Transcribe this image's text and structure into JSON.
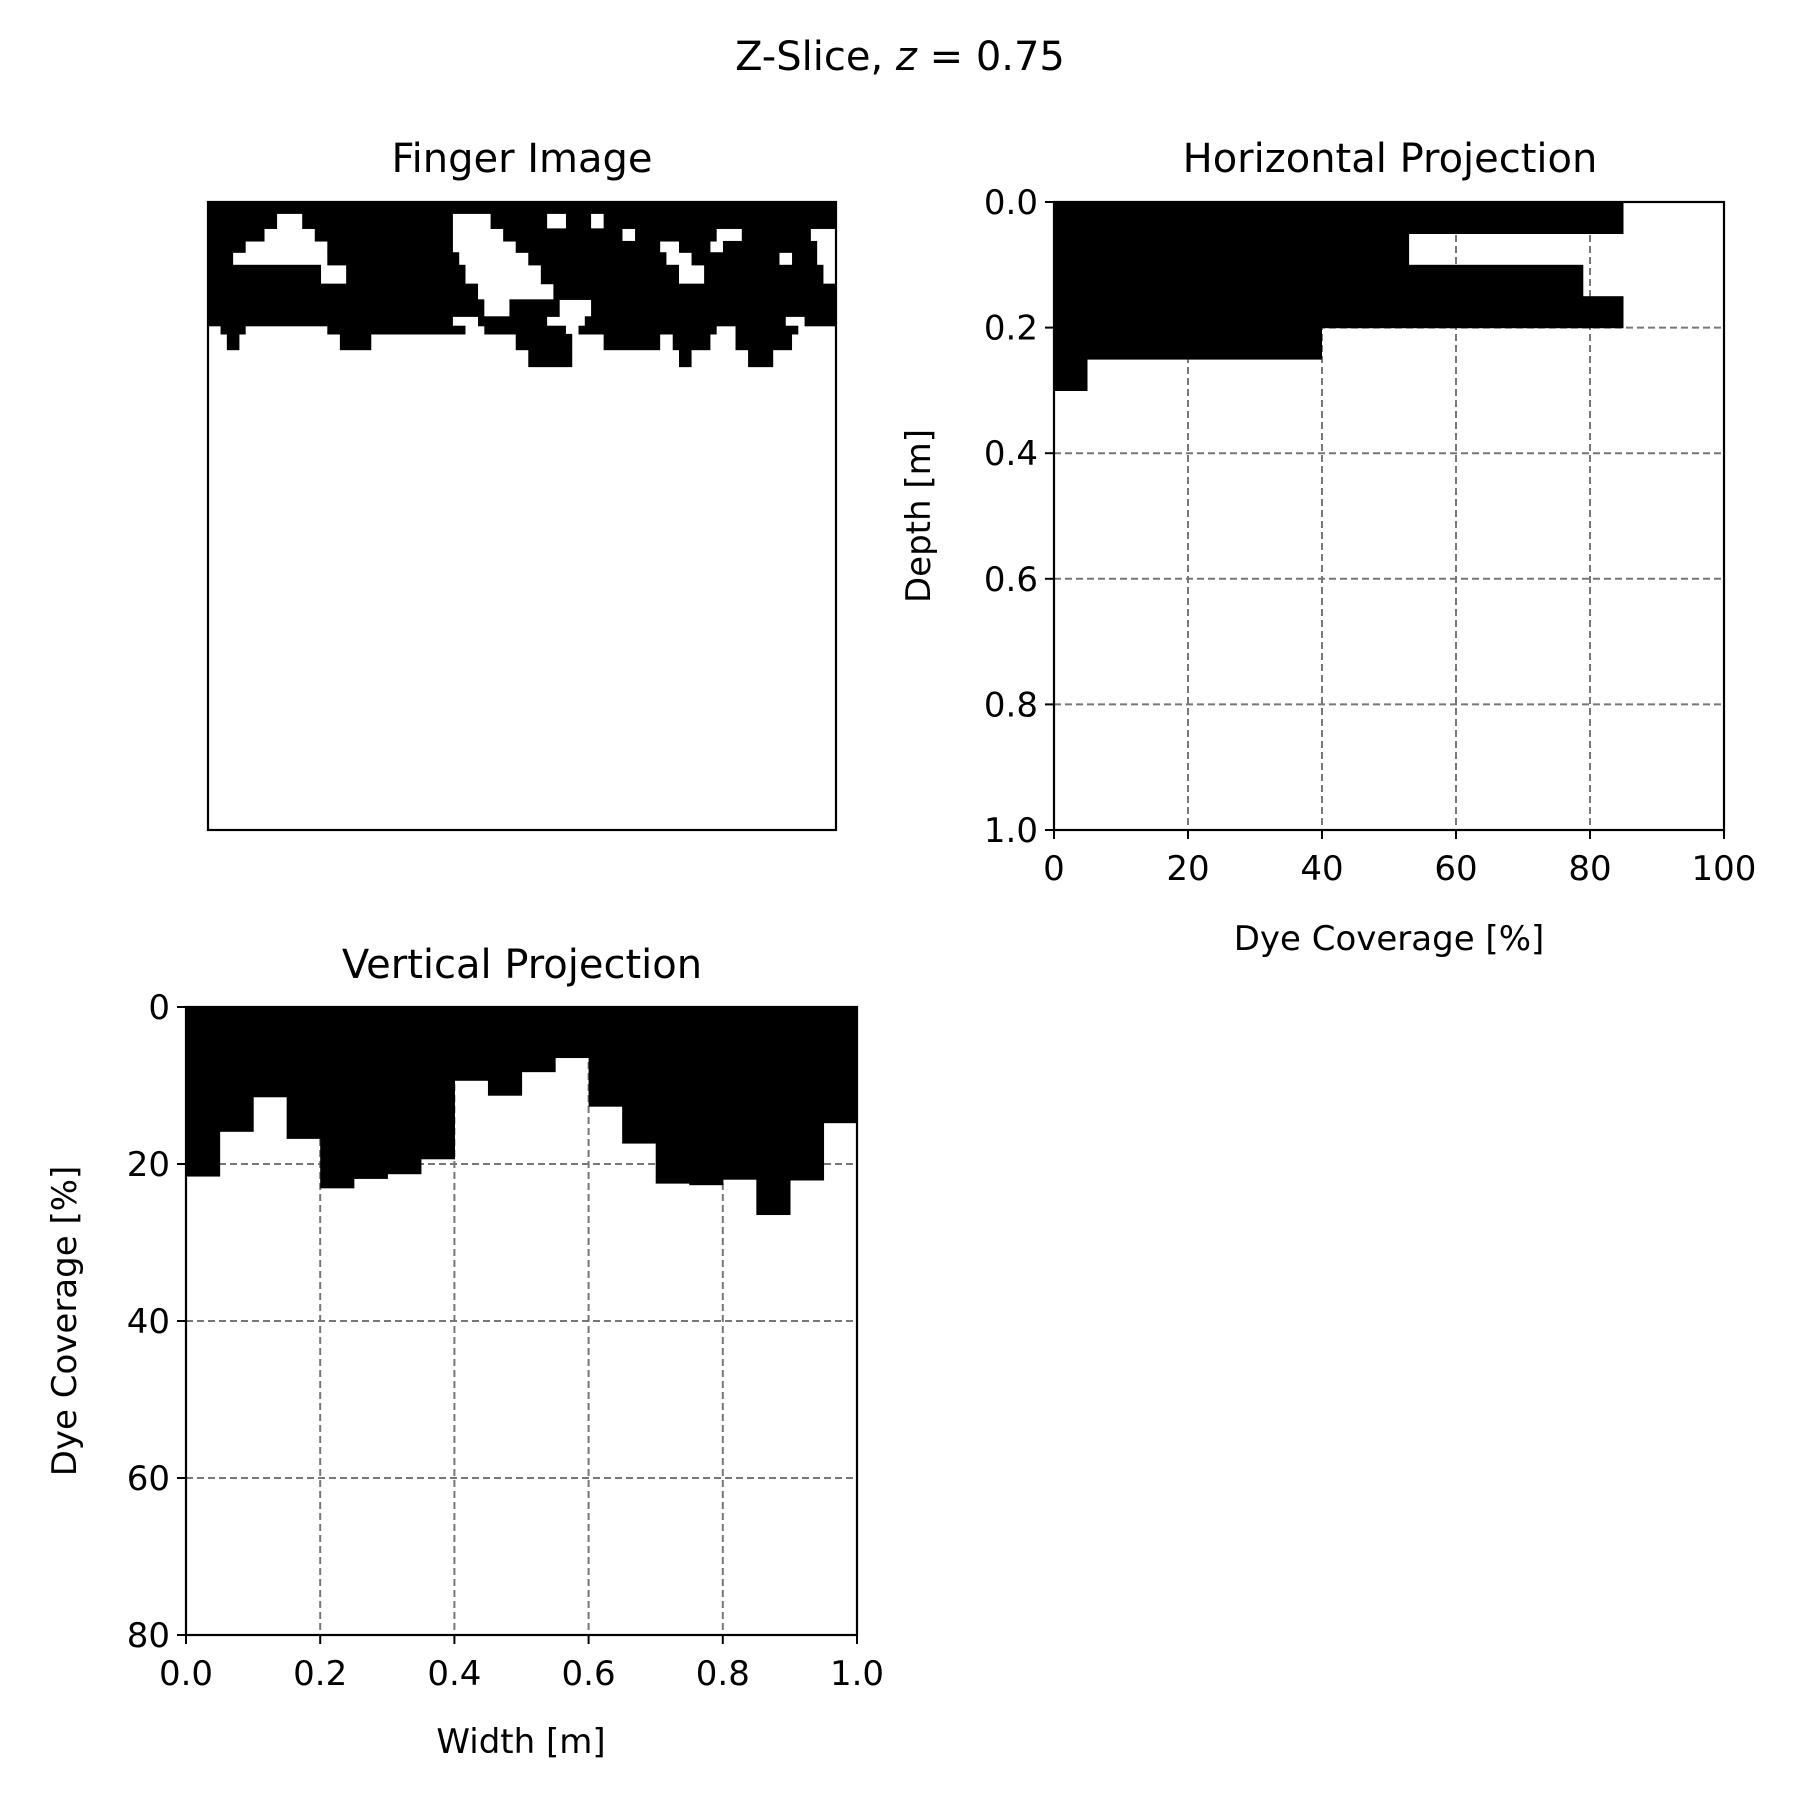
{
  "figure": {
    "suptitle_prefix": "Z-Slice, ",
    "suptitle_var": "z",
    "suptitle_rest": " = 0.75"
  },
  "chart_data": [
    {
      "type": "heatmap",
      "title": "Finger Image",
      "colors": {
        "dye": "#000000",
        "background": "#ffffff"
      },
      "grid": false,
      "axes_ticks": "none",
      "extent": {
        "width_m": 1.0,
        "depth_m": 1.0
      },
      "depth_rows_m": [
        [
          0.0,
          0.018,
          [
            [
              0.0,
              1.0
            ]
          ]
        ],
        [
          0.018,
          0.042,
          [
            [
              0.0,
              0.11
            ],
            [
              0.15,
              0.39
            ],
            [
              0.45,
              0.54
            ],
            [
              0.57,
              0.61
            ],
            [
              0.63,
              1.0
            ]
          ]
        ],
        [
          0.042,
          0.062,
          [
            [
              0.0,
              0.09
            ],
            [
              0.17,
              0.39
            ],
            [
              0.47,
              0.66
            ],
            [
              0.68,
              0.81
            ],
            [
              0.85,
              0.96
            ]
          ]
        ],
        [
          0.062,
          0.08,
          [
            [
              0.0,
              0.06
            ],
            [
              0.19,
              0.39
            ],
            [
              0.49,
              0.72
            ],
            [
              0.75,
              0.8
            ],
            [
              0.82,
              0.97
            ]
          ]
        ],
        [
          0.08,
          0.1,
          [
            [
              0.0,
              0.04
            ],
            [
              0.19,
              0.4
            ],
            [
              0.51,
              0.73
            ],
            [
              0.77,
              0.91
            ],
            [
              0.93,
              0.97
            ]
          ]
        ],
        [
          0.1,
          0.13,
          [
            [
              0.0,
              0.18
            ],
            [
              0.22,
              0.41
            ],
            [
              0.53,
              0.75
            ],
            [
              0.79,
              0.98
            ]
          ]
        ],
        [
          0.13,
          0.155,
          [
            [
              0.0,
              0.43
            ],
            [
              0.55,
              1.0
            ]
          ]
        ],
        [
          0.155,
          0.182,
          [
            [
              0.0,
              0.44
            ],
            [
              0.48,
              0.56
            ],
            [
              0.61,
              1.0
            ]
          ]
        ],
        [
          0.182,
          0.197,
          [
            [
              0.0,
              0.39
            ],
            [
              0.43,
              0.54
            ],
            [
              0.6,
              0.92
            ],
            [
              0.95,
              1.0
            ]
          ]
        ],
        [
          0.197,
          0.21,
          [
            [
              0.02,
              0.06
            ],
            [
              0.19,
              0.41
            ],
            [
              0.44,
              0.57
            ],
            [
              0.59,
              0.81
            ],
            [
              0.84,
              0.94
            ]
          ]
        ],
        [
          0.21,
          0.235,
          [
            [
              0.03,
              0.05
            ],
            [
              0.21,
              0.26
            ],
            [
              0.49,
              0.58
            ],
            [
              0.63,
              0.72
            ],
            [
              0.74,
              0.8
            ],
            [
              0.84,
              0.93
            ]
          ]
        ],
        [
          0.235,
          0.262,
          [
            [
              0.51,
              0.58
            ],
            [
              0.75,
              0.77
            ],
            [
              0.86,
              0.9
            ]
          ]
        ]
      ]
    },
    {
      "type": "bar",
      "orientation": "horizontal",
      "title": "Horizontal Projection",
      "xlabel": "Dye Coverage [%]",
      "ylabel": "Depth [m]",
      "xlim": [
        0,
        100
      ],
      "ylim": [
        1.0,
        0.0
      ],
      "xticks": [
        "0",
        "20",
        "40",
        "60",
        "80",
        "100"
      ],
      "yticks": [
        "0.0",
        "0.2",
        "0.4",
        "0.6",
        "0.8",
        "1.0"
      ],
      "grid": true,
      "colors": {
        "bar": "#000000",
        "grid": "#777777"
      },
      "bins": [
        {
          "depth_from": 0.0,
          "depth_to": 0.05,
          "value": 85
        },
        {
          "depth_from": 0.05,
          "depth_to": 0.1,
          "value": 53
        },
        {
          "depth_from": 0.1,
          "depth_to": 0.15,
          "value": 79
        },
        {
          "depth_from": 0.15,
          "depth_to": 0.2,
          "value": 85
        },
        {
          "depth_from": 0.2,
          "depth_to": 0.25,
          "value": 40
        },
        {
          "depth_from": 0.25,
          "depth_to": 0.3,
          "value": 5
        },
        {
          "depth_from": 0.3,
          "depth_to": 1.0,
          "value": 0
        }
      ]
    },
    {
      "type": "bar",
      "orientation": "vertical-hanging",
      "title": "Vertical Projection",
      "xlabel": "Width [m]",
      "ylabel": "Dye Coverage [%]",
      "xlim": [
        0,
        1.0
      ],
      "ylim": [
        80,
        0
      ],
      "xticks": [
        "0.0",
        "0.2",
        "0.4",
        "0.6",
        "0.8",
        "1.0"
      ],
      "yticks": [
        "0",
        "20",
        "40",
        "60",
        "80"
      ],
      "grid": true,
      "colors": {
        "bar": "#000000",
        "grid": "#777777"
      },
      "bin_width": 0.05,
      "x_start": [
        0.0,
        0.05,
        0.1,
        0.15,
        0.2,
        0.25,
        0.3,
        0.35,
        0.4,
        0.45,
        0.5,
        0.55,
        0.6,
        0.65,
        0.7,
        0.75,
        0.8,
        0.85,
        0.9,
        0.95
      ],
      "values": [
        21.6,
        15.9,
        11.5,
        16.8,
        23.1,
        21.9,
        21.3,
        19.4,
        9.4,
        11.3,
        8.3,
        6.5,
        12.7,
        17.4,
        22.5,
        22.7,
        22.0,
        26.5,
        22.1,
        14.8
      ]
    }
  ]
}
